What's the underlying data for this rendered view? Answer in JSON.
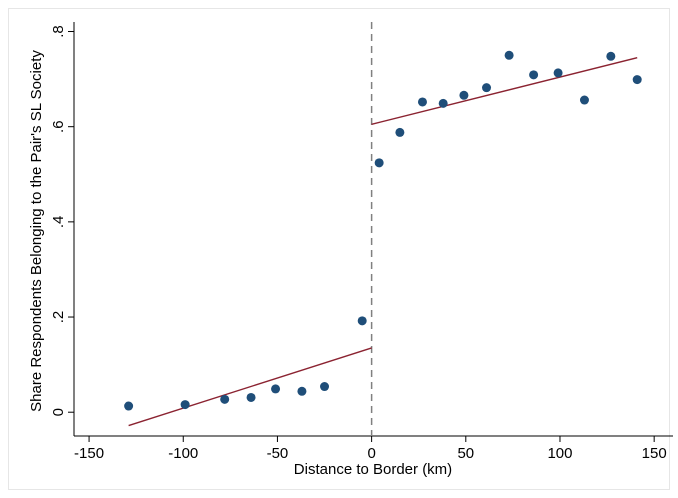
{
  "chart_data": {
    "type": "scatter",
    "title": "",
    "xlabel": "Distance to Border (km)",
    "ylabel": "Share Respondents Belonging to the Pair's SL Society",
    "xlim": [
      -158,
      160
    ],
    "ylim": [
      -0.05,
      0.82
    ],
    "x_ticks": [
      -150,
      -100,
      -50,
      0,
      50,
      100,
      150
    ],
    "x_tick_labels": [
      "-150",
      "-100",
      "-50",
      "0",
      "50",
      "100",
      "150"
    ],
    "y_ticks": [
      0,
      0.2,
      0.4,
      0.6,
      0.8
    ],
    "y_tick_labels": [
      "0",
      ".2",
      ".4",
      ".6",
      ".8"
    ],
    "grid": false,
    "legend": "none",
    "border_line_x": 0,
    "series": [
      {
        "points": [
          {
            "x": -129,
            "y": 0.013
          },
          {
            "x": -99,
            "y": 0.016
          },
          {
            "x": -78,
            "y": 0.027
          },
          {
            "x": -64,
            "y": 0.031
          },
          {
            "x": -51,
            "y": 0.049
          },
          {
            "x": -37,
            "y": 0.044
          },
          {
            "x": -25,
            "y": 0.054
          },
          {
            "x": -5,
            "y": 0.192
          },
          {
            "x": 4,
            "y": 0.524
          },
          {
            "x": 15,
            "y": 0.588
          },
          {
            "x": 27,
            "y": 0.652
          },
          {
            "x": 38,
            "y": 0.649
          },
          {
            "x": 49,
            "y": 0.666
          },
          {
            "x": 61,
            "y": 0.682
          },
          {
            "x": 73,
            "y": 0.75
          },
          {
            "x": 86,
            "y": 0.709
          },
          {
            "x": 99,
            "y": 0.713
          },
          {
            "x": 113,
            "y": 0.656
          },
          {
            "x": 127,
            "y": 0.748
          },
          {
            "x": 141,
            "y": 0.699
          }
        ]
      }
    ],
    "fit_lines": [
      {
        "x": [
          -129,
          0
        ],
        "y": [
          -0.028,
          0.135
        ]
      },
      {
        "x": [
          0,
          141
        ],
        "y": [
          0.605,
          0.745
        ]
      }
    ],
    "colors": {
      "points": "#1f4e79",
      "fit": "#8b2331",
      "border_line": "#808080"
    }
  }
}
